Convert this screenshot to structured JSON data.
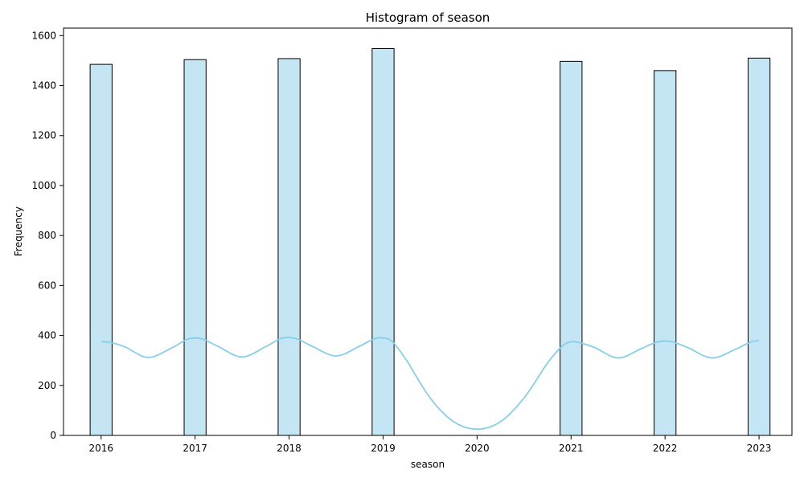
{
  "chart_data": {
    "type": "bar",
    "title": "Histogram of season",
    "xlabel": "season",
    "ylabel": "Frequency",
    "xlim": [
      2015.6,
      2023.35
    ],
    "ylim": [
      0,
      1630
    ],
    "xticks": [
      2016,
      2017,
      2018,
      2019,
      2020,
      2021,
      2022,
      2023
    ],
    "yticks": [
      0,
      200,
      400,
      600,
      800,
      1000,
      1200,
      1400,
      1600
    ],
    "bin_width": 0.2333,
    "bars": [
      {
        "x": 2016,
        "value": 1485
      },
      {
        "x": 2017,
        "value": 1504
      },
      {
        "x": 2018,
        "value": 1508
      },
      {
        "x": 2019,
        "value": 1548
      },
      {
        "x": 2021,
        "value": 1497
      },
      {
        "x": 2022,
        "value": 1460
      },
      {
        "x": 2023,
        "value": 1510
      }
    ],
    "kde": {
      "x": [
        2016,
        2016.1,
        2016.25,
        2016.5,
        2016.75,
        2016.9,
        2017,
        2017.1,
        2017.25,
        2017.5,
        2017.75,
        2017.9,
        2018,
        2018.1,
        2018.25,
        2018.5,
        2018.75,
        2018.9,
        2019,
        2019.1,
        2019.25,
        2019.5,
        2019.75,
        2020,
        2020.25,
        2020.5,
        2020.75,
        2020.9,
        2021,
        2021.1,
        2021.25,
        2021.5,
        2021.75,
        2021.9,
        2022,
        2022.1,
        2022.25,
        2022.5,
        2022.75,
        2022.9,
        2023
      ],
      "y": [
        375,
        372,
        355,
        312,
        350,
        382,
        390,
        383,
        355,
        314,
        355,
        386,
        392,
        384,
        356,
        318,
        357,
        386,
        390,
        375,
        300,
        150,
        55,
        25,
        55,
        150,
        290,
        355,
        375,
        370,
        352,
        310,
        348,
        372,
        378,
        372,
        350,
        310,
        345,
        372,
        380
      ]
    },
    "colors": {
      "bar_fill": "#c4e5f3",
      "bar_edge": "#000000",
      "kde_line": "#87ceeb"
    }
  }
}
